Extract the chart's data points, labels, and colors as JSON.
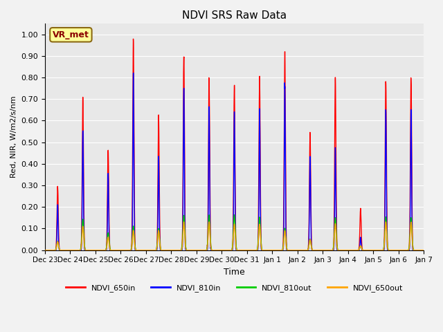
{
  "title": "NDVI SRS Raw Data",
  "ylabel": "Red, NIR, W/m2/s/nm",
  "xlabel": "Time",
  "ylim": [
    0.0,
    1.05
  ],
  "annotation_text": "VR_met",
  "annotation_color": "#8B0000",
  "annotation_bg": "#FFFF99",
  "annotation_border": "#8B6914",
  "series": {
    "NDVI_650in": {
      "color": "#FF0000",
      "lw": 1.0
    },
    "NDVI_810in": {
      "color": "#0000FF",
      "lw": 1.0
    },
    "NDVI_810out": {
      "color": "#00CC00",
      "lw": 1.0
    },
    "NDVI_650out": {
      "color": "#FFA500",
      "lw": 1.0
    }
  },
  "bg_color": "#E8E8E8",
  "grid_color": "#FFFFFF",
  "tick_dates": [
    "Dec 23",
    "Dec 24",
    "Dec 25",
    "Dec 26",
    "Dec 27",
    "Dec 28",
    "Dec 29",
    "Dec 30",
    "Dec 31",
    "Jan 1",
    "Jan 2",
    "Jan 3",
    "Jan 4",
    "Jan 5",
    "Jan 6",
    "Jan 7"
  ],
  "red_peaks": [
    0.29,
    0.68,
    0.46,
    0.96,
    0.61,
    0.89,
    0.77,
    0.76,
    0.78,
    0.9,
    0.53,
    0.79,
    0.19,
    0.78,
    0.78
  ],
  "blue_peaks": [
    0.21,
    0.55,
    0.35,
    0.81,
    0.43,
    0.75,
    0.66,
    0.64,
    0.65,
    0.75,
    0.43,
    0.47,
    0.06,
    0.65,
    0.65
  ],
  "green_peaks": [
    0.04,
    0.14,
    0.08,
    0.11,
    0.1,
    0.16,
    0.16,
    0.16,
    0.15,
    0.1,
    0.05,
    0.15,
    0.02,
    0.15,
    0.15
  ],
  "orange_peaks": [
    0.04,
    0.11,
    0.06,
    0.09,
    0.09,
    0.13,
    0.13,
    0.12,
    0.12,
    0.09,
    0.05,
    0.12,
    0.02,
    0.13,
    0.13
  ],
  "n_days": 15,
  "pts_per_day": 200
}
